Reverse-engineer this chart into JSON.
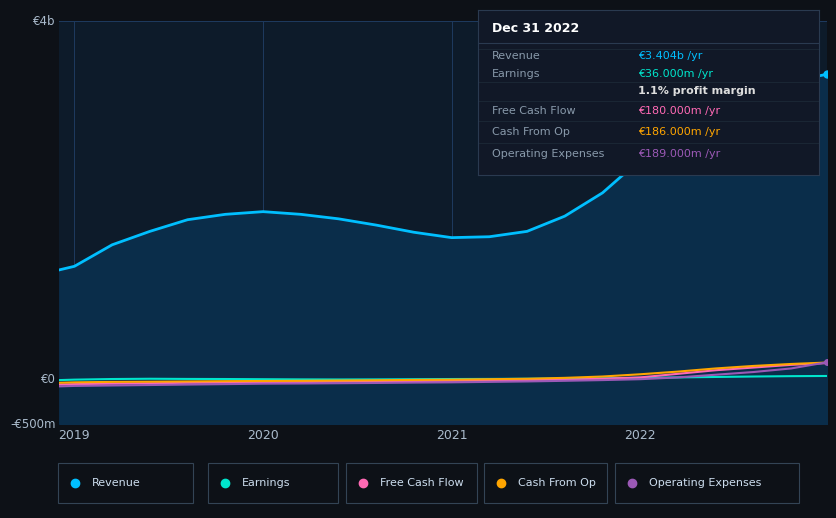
{
  "bg_color": "#0d1117",
  "plot_bg_color": "#0d1b2a",
  "grid_color": "#1e3a5f",
  "x_years": [
    2018.92,
    2019.0,
    2019.2,
    2019.4,
    2019.6,
    2019.8,
    2020.0,
    2020.2,
    2020.4,
    2020.6,
    2020.8,
    2021.0,
    2021.2,
    2021.4,
    2021.6,
    2021.8,
    2022.0,
    2022.2,
    2022.4,
    2022.6,
    2022.8,
    2022.99
  ],
  "revenue": [
    1220,
    1260,
    1500,
    1650,
    1780,
    1840,
    1870,
    1840,
    1790,
    1720,
    1640,
    1580,
    1590,
    1650,
    1820,
    2080,
    2450,
    2800,
    3050,
    3200,
    3320,
    3404
  ],
  "earnings": [
    -10,
    -5,
    2,
    5,
    3,
    2,
    0,
    -2,
    -3,
    -2,
    0,
    2,
    3,
    5,
    8,
    10,
    15,
    20,
    25,
    30,
    34,
    36
  ],
  "fcf": [
    -60,
    -55,
    -50,
    -45,
    -40,
    -38,
    -35,
    -32,
    -28,
    -25,
    -20,
    -18,
    -15,
    -10,
    -5,
    5,
    20,
    60,
    100,
    130,
    160,
    180
  ],
  "cashfromop": [
    -40,
    -35,
    -30,
    -28,
    -25,
    -22,
    -20,
    -18,
    -15,
    -12,
    -8,
    -5,
    0,
    5,
    15,
    30,
    55,
    85,
    120,
    148,
    170,
    186
  ],
  "opex": [
    -80,
    -75,
    -70,
    -65,
    -60,
    -55,
    -50,
    -48,
    -45,
    -42,
    -38,
    -35,
    -30,
    -25,
    -18,
    -10,
    0,
    20,
    50,
    80,
    120,
    189
  ],
  "revenue_color": "#00bfff",
  "earnings_color": "#00e5cc",
  "fcf_color": "#ff69b4",
  "cashfromop_color": "#ffa500",
  "opex_color": "#9b59b6",
  "revenue_fill_alpha": 0.9,
  "ylim_min": -500,
  "ylim_max": 4000,
  "ytick_vals": [
    -500,
    0,
    4000
  ],
  "ytick_labels": [
    "-€500m",
    "€0",
    "€4b"
  ],
  "xticks": [
    2019,
    2020,
    2021,
    2022
  ],
  "xtick_labels": [
    "2019",
    "2020",
    "2021",
    "2022"
  ],
  "infobox": {
    "title": "Dec 31 2022",
    "rows": [
      {
        "label": "Revenue",
        "value": "€3.404b /yr",
        "value_color": "#00bfff",
        "label_color": "#8899aa"
      },
      {
        "label": "Earnings",
        "value": "€36.000m /yr",
        "value_color": "#00e5cc",
        "label_color": "#8899aa"
      },
      {
        "label": "",
        "value": "1.1% profit margin",
        "value_color": "#dddddd",
        "label_color": "#8899aa"
      },
      {
        "label": "Free Cash Flow",
        "value": "€180.000m /yr",
        "value_color": "#ff69b4",
        "label_color": "#8899aa"
      },
      {
        "label": "Cash From Op",
        "value": "€186.000m /yr",
        "value_color": "#ffa500",
        "label_color": "#8899aa"
      },
      {
        "label": "Operating Expenses",
        "value": "€189.000m /yr",
        "value_color": "#9b59b6",
        "label_color": "#8899aa"
      }
    ]
  },
  "legend": [
    {
      "label": "Revenue",
      "color": "#00bfff"
    },
    {
      "label": "Earnings",
      "color": "#00e5cc"
    },
    {
      "label": "Free Cash Flow",
      "color": "#ff69b4"
    },
    {
      "label": "Cash From Op",
      "color": "#ffa500"
    },
    {
      "label": "Operating Expenses",
      "color": "#9b59b6"
    }
  ]
}
